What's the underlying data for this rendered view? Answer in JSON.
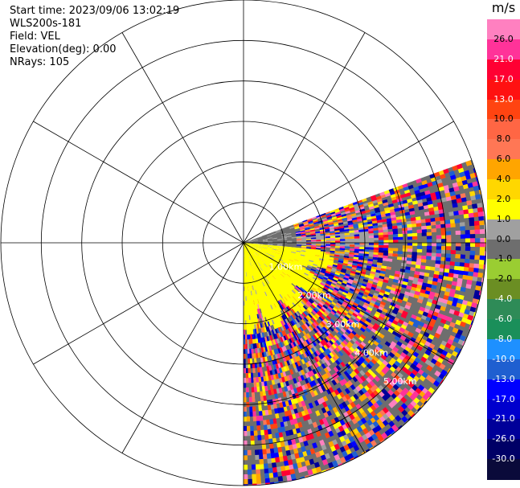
{
  "header": {
    "start_time": "Start time: 2023/09/06 13:02:19",
    "instrument": "WLS200s-181",
    "field": "Field: VEL",
    "elevation": "Elevation(deg): 0.00",
    "nrays": "NRays: 105"
  },
  "ppi": {
    "max_range_km": 6.0,
    "ring_labels": [
      "1.00km",
      "2.00km",
      "3.00km",
      "4.00km",
      "5.00km"
    ],
    "sector_start_az_deg": 70,
    "sector_end_az_deg": 180,
    "yellow_inner_az_deg": [
      95,
      180
    ],
    "yellow_range_km": 2.0
  },
  "colorbar": {
    "unit": "m/s",
    "ticks": [
      "26.0",
      "21.0",
      "17.0",
      "13.0",
      "10.0",
      "8.0",
      "6.0",
      "4.0",
      "2.0",
      "1.0",
      "0.0",
      "-1.0",
      "-2.0",
      "-4.0",
      "-6.0",
      "-8.0",
      "-10.0",
      "-13.0",
      "-17.0",
      "-21.0",
      "-26.0",
      "-30.0"
    ],
    "colors": [
      "#ff80c0",
      "#ff3399",
      "#ff0033",
      "#ff1111",
      "#ff4411",
      "#ff6644",
      "#ff7755",
      "#ffa500",
      "#ffd700",
      "#ffff00",
      "#a0a0a0",
      "#6e6e6e",
      "#9acd32",
      "#6b8e23",
      "#2e8b57",
      "#1a8f5a",
      "#1e90ff",
      "#1f5fd0",
      "#0000ff",
      "#0000cd",
      "#000099",
      "#000066",
      "#0a0a3a"
    ]
  }
}
